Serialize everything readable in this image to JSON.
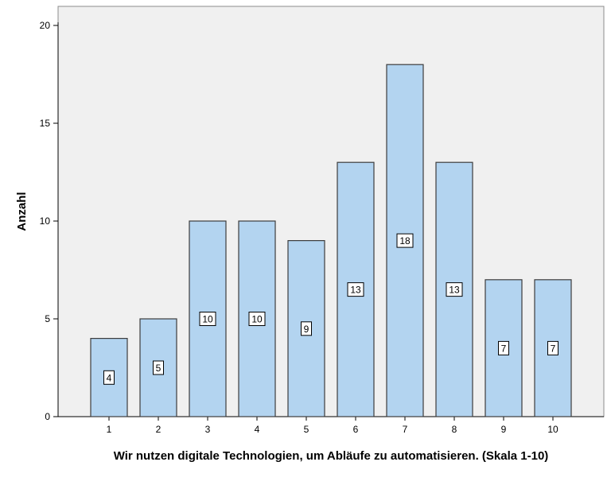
{
  "chart_data": {
    "type": "bar",
    "categories": [
      "1",
      "2",
      "3",
      "4",
      "5",
      "6",
      "7",
      "8",
      "9",
      "10"
    ],
    "values": [
      4,
      5,
      10,
      10,
      9,
      13,
      18,
      13,
      7,
      7
    ],
    "xlabel": "Wir nutzen digitale Technologien, um Abläufe zu automatisieren. (Skala 1-10)",
    "ylabel": "Anzahl",
    "ylim": [
      0,
      20
    ],
    "yticks": [
      0,
      5,
      10,
      15,
      20
    ],
    "grid": false,
    "data_labels": true,
    "colors": {
      "plot_background": "#f0f0f0",
      "bar_fill": "#b3d4f0",
      "bar_stroke": "#3c3c3c",
      "label_box_fill": "#ffffff"
    }
  }
}
